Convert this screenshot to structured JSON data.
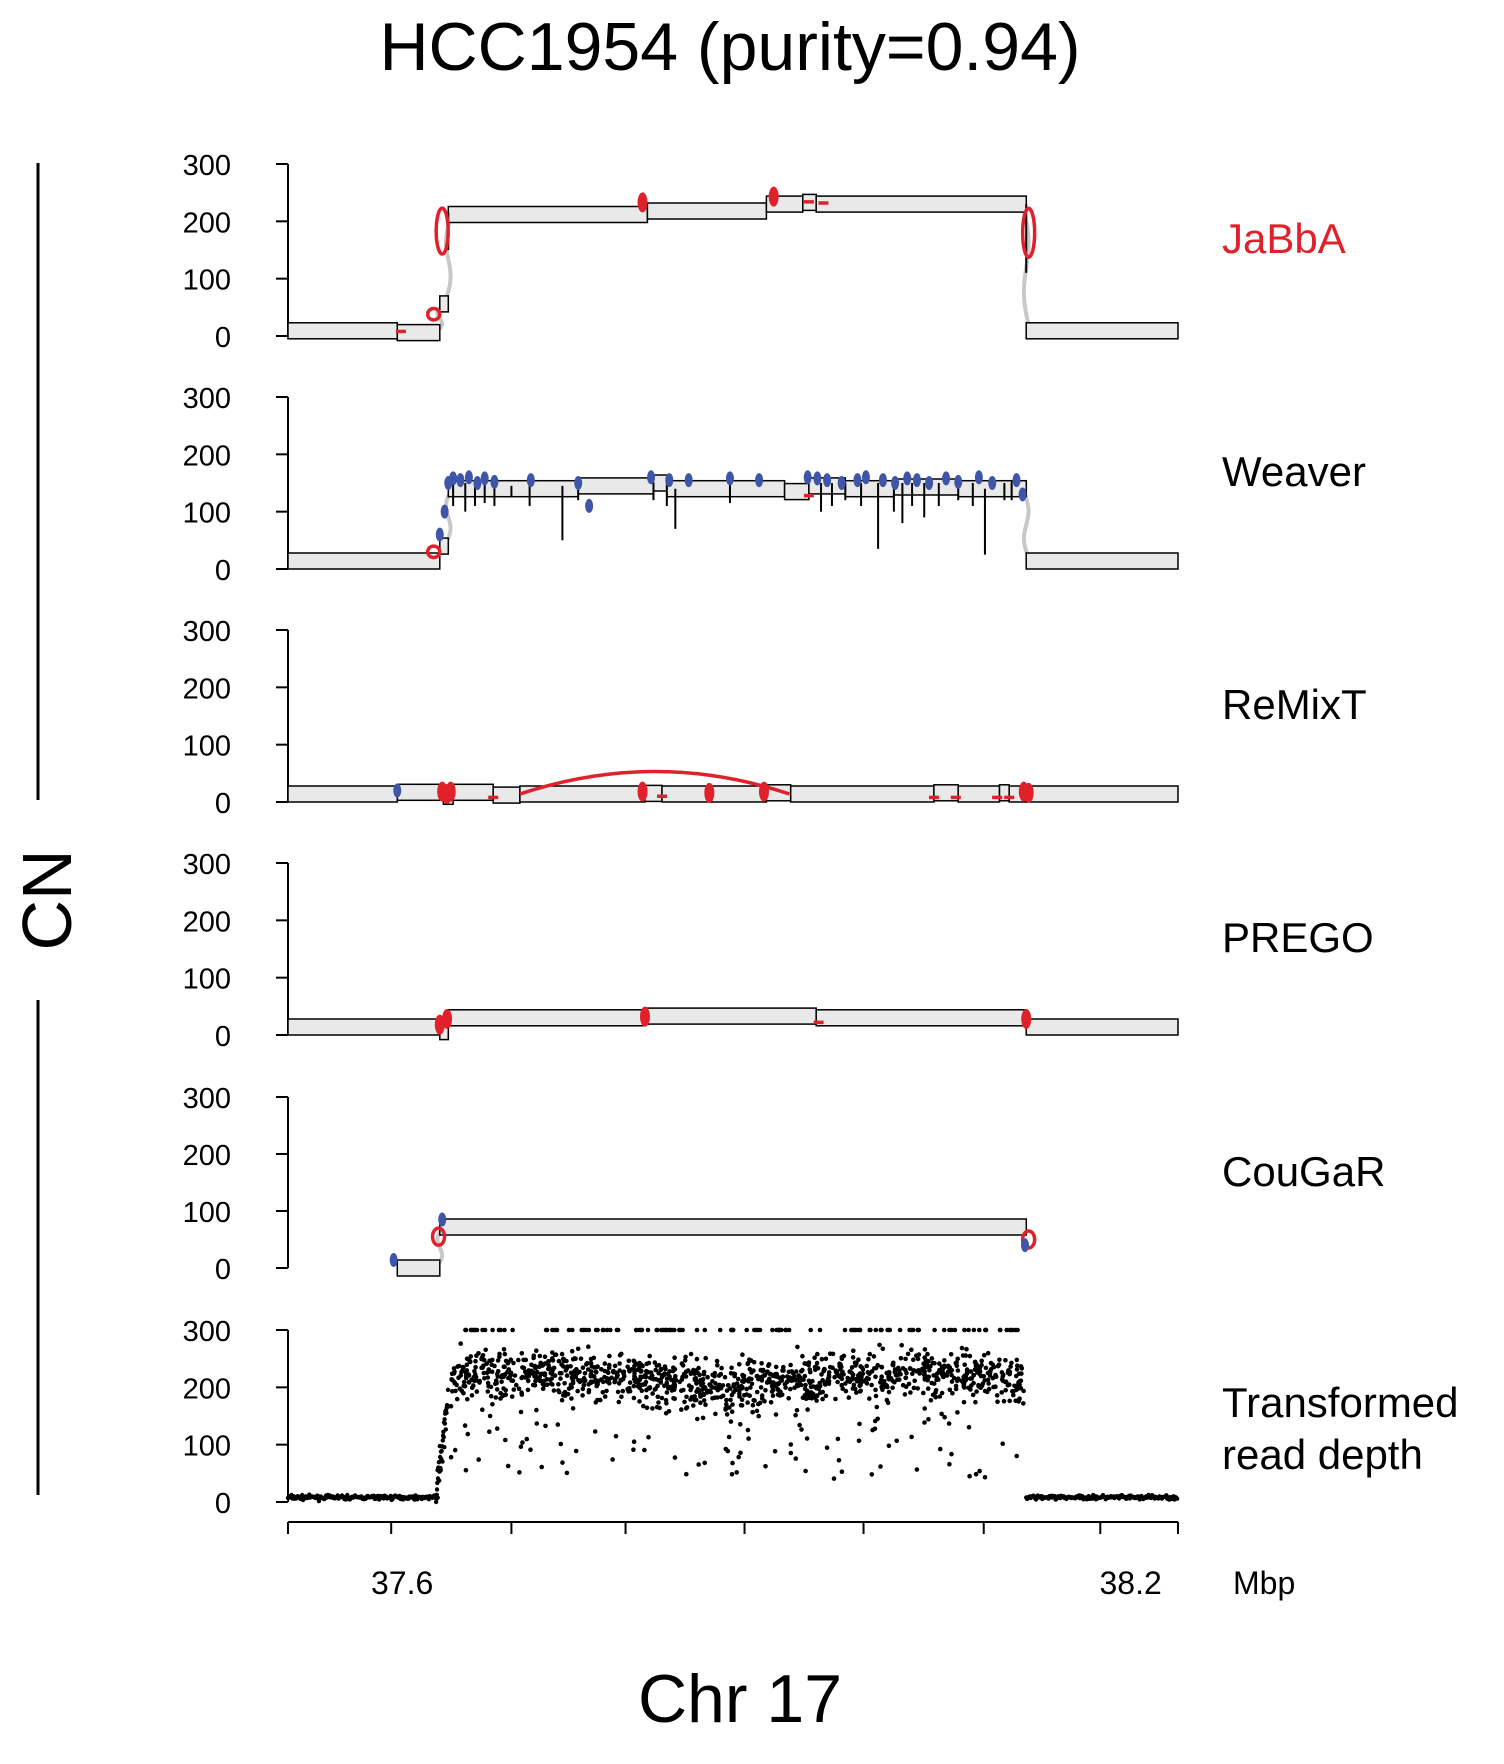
{
  "title": "HCC1954 (purity=0.94)",
  "ylabel": "CN",
  "xlabel": "Chr 17",
  "xunit": "Mbp",
  "colors": {
    "junction_red": "#e0212b",
    "junction_blue": "#3f56a8",
    "segment_fill": "#e9e9e9",
    "loose_gray": "#c8c8c8",
    "points": "#000000"
  },
  "chart_data": {
    "type": "segments",
    "xlim": [
      37.506,
      38.239
    ],
    "ylim": [
      0,
      300
    ],
    "yticks": [
      0,
      100,
      200,
      300
    ],
    "xticks_minor": [
      37.506,
      37.591,
      37.69,
      37.784,
      37.882,
      37.98,
      38.079,
      38.175,
      38.239
    ],
    "xtick_labels": [
      {
        "x": 37.6,
        "label": "37.6"
      },
      {
        "x": 38.2,
        "label": "38.2"
      }
    ],
    "panels": [
      {
        "name": "JaBbA",
        "label": "JaBbA",
        "label_color": "#e0212b",
        "segments": [
          {
            "x0": 37.506,
            "x1": 37.596,
            "cn": 9
          },
          {
            "x0": 37.596,
            "x1": 37.631,
            "cn": 6
          },
          {
            "x0": 37.631,
            "x1": 37.638,
            "cn": 56
          },
          {
            "x0": 37.638,
            "x1": 37.802,
            "cn": 212
          },
          {
            "x0": 37.802,
            "x1": 37.9,
            "cn": 218
          },
          {
            "x0": 37.9,
            "x1": 37.93,
            "cn": 230
          },
          {
            "x0": 37.93,
            "x1": 37.941,
            "cn": 233
          },
          {
            "x0": 37.941,
            "x1": 38.114,
            "cn": 230
          },
          {
            "x0": 38.114,
            "x1": 38.239,
            "cn": 9
          }
        ],
        "red_loops": [
          {
            "x": 37.633,
            "y": 183,
            "h": 80
          },
          {
            "x": 37.626,
            "y": 38,
            "h": 20
          },
          {
            "x": 38.116,
            "y": 180,
            "h": 85
          }
        ],
        "red_dots": [
          {
            "x": 37.798,
            "y": 233
          },
          {
            "x": 37.906,
            "y": 243
          }
        ],
        "red_dashes": [
          {
            "x": 37.599,
            "y": 8
          },
          {
            "x": 37.935,
            "y": 234
          },
          {
            "x": 37.947,
            "y": 232
          }
        ],
        "blue_dots": [],
        "black_ticks": [
          {
            "x": 37.638,
            "y0": 150,
            "y1": 215
          },
          {
            "x": 38.114,
            "y0": 110,
            "y1": 230
          }
        ]
      },
      {
        "name": "Weaver",
        "label": "Weaver",
        "label_color": "#000000",
        "segments": [
          {
            "x0": 37.506,
            "x1": 37.631,
            "cn": 14
          },
          {
            "x0": 37.631,
            "x1": 37.638,
            "cn": 40
          },
          {
            "x0": 37.638,
            "x1": 37.745,
            "cn": 140
          },
          {
            "x0": 37.745,
            "x1": 37.807,
            "cn": 145
          },
          {
            "x0": 37.807,
            "x1": 37.818,
            "cn": 150
          },
          {
            "x0": 37.818,
            "x1": 37.915,
            "cn": 140
          },
          {
            "x0": 37.915,
            "x1": 37.935,
            "cn": 135
          },
          {
            "x0": 37.935,
            "x1": 37.965,
            "cn": 145
          },
          {
            "x0": 37.965,
            "x1": 38.005,
            "cn": 140
          },
          {
            "x0": 38.005,
            "x1": 38.058,
            "cn": 143
          },
          {
            "x0": 38.058,
            "x1": 38.102,
            "cn": 140
          },
          {
            "x0": 38.102,
            "x1": 38.114,
            "cn": 140
          },
          {
            "x0": 38.114,
            "x1": 38.239,
            "cn": 14
          }
        ],
        "red_loops": [
          {
            "x": 37.626,
            "y": 30,
            "h": 20
          }
        ],
        "red_dots": [],
        "red_dashes": [
          {
            "x": 37.935,
            "y": 128
          }
        ],
        "blue_dots": [
          {
            "x": 37.631,
            "y": 60
          },
          {
            "x": 37.635,
            "y": 100
          },
          {
            "x": 37.638,
            "y": 150
          },
          {
            "x": 37.642,
            "y": 158
          },
          {
            "x": 37.648,
            "y": 155
          },
          {
            "x": 37.655,
            "y": 160
          },
          {
            "x": 37.662,
            "y": 150
          },
          {
            "x": 37.668,
            "y": 158
          },
          {
            "x": 37.676,
            "y": 152
          },
          {
            "x": 37.706,
            "y": 155
          },
          {
            "x": 37.745,
            "y": 150
          },
          {
            "x": 37.754,
            "y": 110
          },
          {
            "x": 37.805,
            "y": 160
          },
          {
            "x": 37.82,
            "y": 155
          },
          {
            "x": 37.836,
            "y": 155
          },
          {
            "x": 37.87,
            "y": 158
          },
          {
            "x": 37.894,
            "y": 155
          },
          {
            "x": 37.934,
            "y": 160
          },
          {
            "x": 37.942,
            "y": 158
          },
          {
            "x": 37.95,
            "y": 155
          },
          {
            "x": 37.962,
            "y": 150
          },
          {
            "x": 37.975,
            "y": 155
          },
          {
            "x": 37.982,
            "y": 160
          },
          {
            "x": 37.996,
            "y": 155
          },
          {
            "x": 38.006,
            "y": 150
          },
          {
            "x": 38.016,
            "y": 158
          },
          {
            "x": 38.024,
            "y": 155
          },
          {
            "x": 38.034,
            "y": 150
          },
          {
            "x": 38.048,
            "y": 158
          },
          {
            "x": 38.058,
            "y": 152
          },
          {
            "x": 38.075,
            "y": 160
          },
          {
            "x": 38.086,
            "y": 150
          },
          {
            "x": 38.106,
            "y": 155
          },
          {
            "x": 38.111,
            "y": 130
          }
        ],
        "black_ticks": [
          {
            "x": 37.642,
            "y0": 110,
            "y1": 155
          },
          {
            "x": 37.652,
            "y0": 100,
            "y1": 150
          },
          {
            "x": 37.66,
            "y0": 110,
            "y1": 155
          },
          {
            "x": 37.668,
            "y0": 115,
            "y1": 150
          },
          {
            "x": 37.676,
            "y0": 110,
            "y1": 150
          },
          {
            "x": 37.69,
            "y0": 125,
            "y1": 145
          },
          {
            "x": 37.705,
            "y0": 110,
            "y1": 150
          },
          {
            "x": 37.732,
            "y0": 50,
            "y1": 145
          },
          {
            "x": 37.745,
            "y0": 120,
            "y1": 150
          },
          {
            "x": 37.807,
            "y0": 120,
            "y1": 150
          },
          {
            "x": 37.818,
            "y0": 110,
            "y1": 150
          },
          {
            "x": 37.825,
            "y0": 70,
            "y1": 140
          },
          {
            "x": 37.87,
            "y0": 115,
            "y1": 150
          },
          {
            "x": 37.945,
            "y0": 100,
            "y1": 150
          },
          {
            "x": 37.954,
            "y0": 110,
            "y1": 150
          },
          {
            "x": 37.965,
            "y0": 120,
            "y1": 150
          },
          {
            "x": 37.978,
            "y0": 110,
            "y1": 150
          },
          {
            "x": 37.992,
            "y0": 35,
            "y1": 150
          },
          {
            "x": 38.005,
            "y0": 100,
            "y1": 150
          },
          {
            "x": 38.012,
            "y0": 80,
            "y1": 150
          },
          {
            "x": 38.02,
            "y0": 110,
            "y1": 150
          },
          {
            "x": 38.03,
            "y0": 90,
            "y1": 150
          },
          {
            "x": 38.042,
            "y0": 110,
            "y1": 150
          },
          {
            "x": 38.058,
            "y0": 120,
            "y1": 150
          },
          {
            "x": 38.07,
            "y0": 110,
            "y1": 150
          },
          {
            "x": 38.08,
            "y0": 25,
            "y1": 140
          },
          {
            "x": 38.096,
            "y0": 120,
            "y1": 150
          },
          {
            "x": 38.102,
            "y0": 120,
            "y1": 150
          }
        ]
      },
      {
        "name": "ReMixT",
        "label": "ReMixT",
        "label_color": "#000000",
        "segments": [
          {
            "x0": 37.506,
            "x1": 37.596,
            "cn": 14
          },
          {
            "x0": 37.596,
            "x1": 37.634,
            "cn": 17
          },
          {
            "x0": 37.634,
            "x1": 37.642,
            "cn": 10
          },
          {
            "x0": 37.642,
            "x1": 37.675,
            "cn": 17
          },
          {
            "x0": 37.675,
            "x1": 37.697,
            "cn": 12
          },
          {
            "x0": 37.697,
            "x1": 37.8,
            "cn": 14
          },
          {
            "x0": 37.8,
            "x1": 37.814,
            "cn": 15
          },
          {
            "x0": 37.814,
            "x1": 37.855,
            "cn": 14
          },
          {
            "x0": 37.855,
            "x1": 37.9,
            "cn": 14
          },
          {
            "x0": 37.9,
            "x1": 37.92,
            "cn": 16
          },
          {
            "x0": 37.92,
            "x1": 38.038,
            "cn": 14
          },
          {
            "x0": 38.038,
            "x1": 38.058,
            "cn": 16
          },
          {
            "x0": 38.058,
            "x1": 38.092,
            "cn": 14
          },
          {
            "x0": 38.092,
            "x1": 38.1,
            "cn": 16
          },
          {
            "x0": 38.1,
            "x1": 38.114,
            "cn": 14
          },
          {
            "x0": 38.114,
            "x1": 38.239,
            "cn": 14
          }
        ],
        "red_arcs": [
          {
            "x0": 37.697,
            "x1": 37.919,
            "y": 14,
            "peak": 40
          }
        ],
        "red_dots": [
          {
            "x": 37.633,
            "y": 18
          },
          {
            "x": 37.637,
            "y": 14
          },
          {
            "x": 37.64,
            "y": 18
          },
          {
            "x": 37.798,
            "y": 18
          },
          {
            "x": 37.853,
            "y": 16
          },
          {
            "x": 37.898,
            "y": 18
          },
          {
            "x": 38.112,
            "y": 18
          },
          {
            "x": 38.116,
            "y": 16
          }
        ],
        "red_dashes": [
          {
            "x": 37.675,
            "y": 8
          },
          {
            "x": 37.814,
            "y": 10
          },
          {
            "x": 38.038,
            "y": 8
          },
          {
            "x": 38.056,
            "y": 8
          },
          {
            "x": 38.09,
            "y": 8
          },
          {
            "x": 38.1,
            "y": 8
          }
        ],
        "red_loops": [],
        "blue_dots": [
          {
            "x": 37.596,
            "y": 20
          }
        ],
        "black_ticks": []
      },
      {
        "name": "PREGO",
        "label": "PREGO",
        "label_color": "#000000",
        "segments": [
          {
            "x0": 37.506,
            "x1": 37.631,
            "cn": 14
          },
          {
            "x0": 37.631,
            "x1": 37.638,
            "cn": 6
          },
          {
            "x0": 37.638,
            "x1": 37.8,
            "cn": 30
          },
          {
            "x0": 37.8,
            "x1": 37.941,
            "cn": 33
          },
          {
            "x0": 37.941,
            "x1": 38.114,
            "cn": 30
          },
          {
            "x0": 38.114,
            "x1": 38.239,
            "cn": 14
          }
        ],
        "red_loops": [],
        "red_dots": [
          {
            "x": 37.631,
            "y": 18
          },
          {
            "x": 37.637,
            "y": 28
          },
          {
            "x": 37.8,
            "y": 32
          },
          {
            "x": 38.114,
            "y": 28
          }
        ],
        "red_dashes": [
          {
            "x": 37.943,
            "y": 22
          }
        ],
        "blue_dots": [],
        "black_ticks": []
      },
      {
        "name": "CouGaR",
        "label": "CouGaR",
        "label_color": "#000000",
        "segments": [
          {
            "x0": 37.596,
            "x1": 37.631,
            "cn": 0
          },
          {
            "x0": 37.631,
            "x1": 38.114,
            "cn": 72
          }
        ],
        "red_loops": [
          {
            "x": 37.63,
            "y": 55,
            "h": 30
          },
          {
            "x": 38.116,
            "y": 50,
            "h": 30
          }
        ],
        "red_dots": [],
        "red_dashes": [],
        "blue_dots": [
          {
            "x": 37.593,
            "y": 14
          },
          {
            "x": 37.633,
            "y": 85
          },
          {
            "x": 38.113,
            "y": 40
          }
        ],
        "black_ticks": []
      },
      {
        "name": "Transformed read depth",
        "label_lines": [
          "Transformed",
          "read depth"
        ],
        "label_color": "#000000",
        "type": "scatter",
        "scatter_params": {
          "flank_left": [
            37.506,
            37.63
          ],
          "amplified": [
            37.63,
            38.114
          ],
          "flank_right": [
            38.114,
            38.239
          ],
          "flank_level": 8,
          "amp_level": 215,
          "cap": 300
        }
      }
    ]
  }
}
